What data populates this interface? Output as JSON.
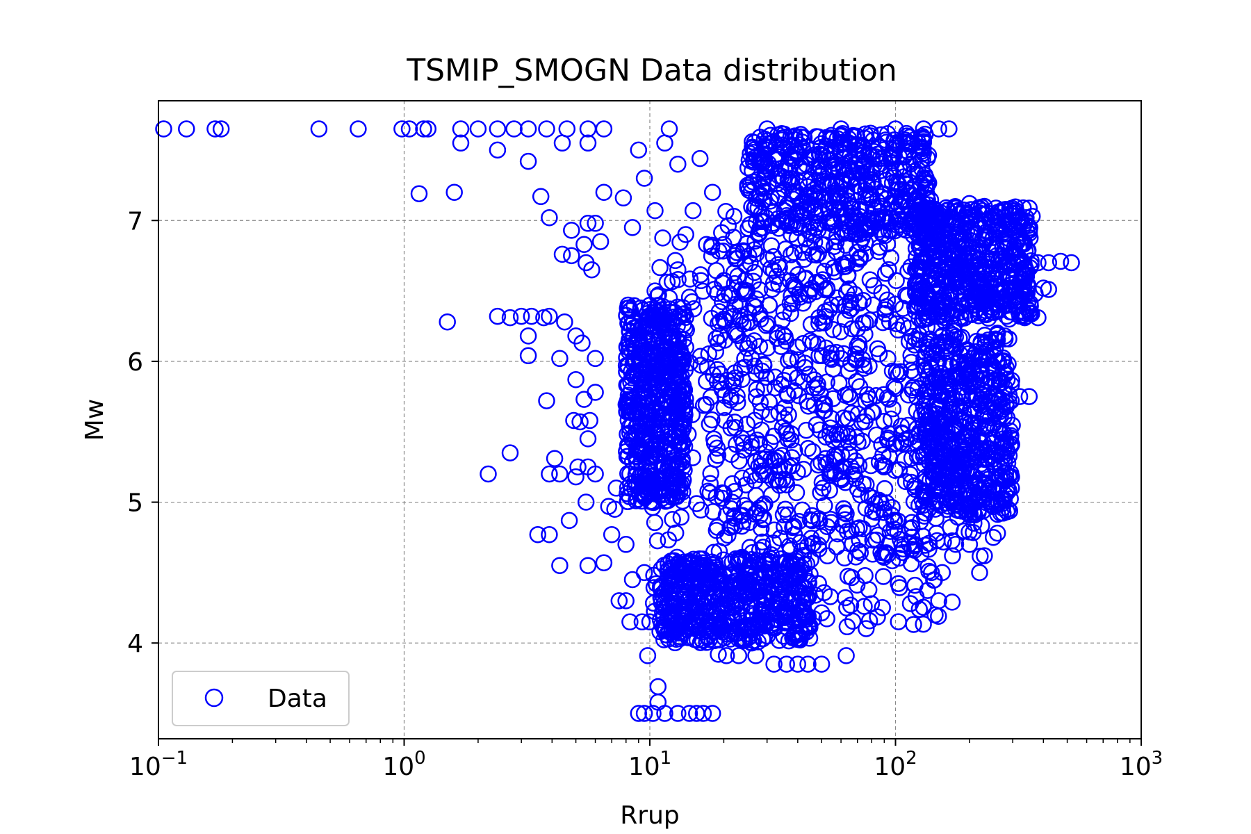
{
  "chart_data": {
    "type": "scatter",
    "title": "TSMIP_SMOGN Data distribution",
    "xlabel": "Rrup",
    "ylabel": "Mw",
    "xscale": "log",
    "xlim": [
      0.1,
      1000
    ],
    "ylim": [
      3.32,
      7.85
    ],
    "x_ticks": [
      {
        "value": 0.1,
        "base": "10",
        "exp": "−1"
      },
      {
        "value": 1,
        "base": "10",
        "exp": "0"
      },
      {
        "value": 10,
        "base": "10",
        "exp": "1"
      },
      {
        "value": 100,
        "base": "10",
        "exp": "2"
      },
      {
        "value": 1000,
        "base": "10",
        "exp": "3"
      }
    ],
    "y_ticks": [
      {
        "value": 4,
        "label": "4"
      },
      {
        "value": 5,
        "label": "5"
      },
      {
        "value": 6,
        "label": "6"
      },
      {
        "value": 7,
        "label": "7"
      }
    ],
    "grid": true,
    "legend_position": "lower-left",
    "series": [
      {
        "name": "Data",
        "marker": "open-circle",
        "color": "#0000ff",
        "points": [
          [
            0.105,
            7.65
          ],
          [
            0.13,
            7.65
          ],
          [
            0.17,
            7.65
          ],
          [
            0.18,
            7.65
          ],
          [
            0.45,
            7.65
          ],
          [
            0.65,
            7.65
          ],
          [
            0.98,
            7.65
          ],
          [
            1.05,
            7.65
          ],
          [
            1.2,
            7.65
          ],
          [
            1.25,
            7.65
          ],
          [
            1.7,
            7.65
          ],
          [
            2.0,
            7.65
          ],
          [
            2.4,
            7.65
          ],
          [
            2.8,
            7.65
          ],
          [
            3.2,
            7.65
          ],
          [
            3.8,
            7.65
          ],
          [
            4.6,
            7.65
          ],
          [
            5.6,
            7.65
          ],
          [
            6.5,
            7.65
          ],
          [
            12,
            7.65
          ],
          [
            30,
            7.65
          ],
          [
            60,
            7.65
          ],
          [
            100,
            7.65
          ],
          [
            130,
            7.65
          ],
          [
            150,
            7.65
          ],
          [
            165,
            7.65
          ],
          [
            1.7,
            7.55
          ],
          [
            2.4,
            7.5
          ],
          [
            3.2,
            7.42
          ],
          [
            4.4,
            7.55
          ],
          [
            5.6,
            7.55
          ],
          [
            9,
            7.5
          ],
          [
            1.15,
            7.19
          ],
          [
            1.6,
            7.2
          ],
          [
            3.6,
            7.17
          ],
          [
            6.5,
            7.2
          ],
          [
            7.8,
            7.16
          ],
          [
            9.5,
            7.3
          ],
          [
            10.5,
            7.07
          ],
          [
            3.9,
            7.02
          ],
          [
            5.6,
            6.98
          ],
          [
            6.0,
            6.98
          ],
          [
            8.5,
            6.95
          ],
          [
            4.8,
            6.93
          ],
          [
            5.4,
            6.83
          ],
          [
            6.3,
            6.85
          ],
          [
            4.4,
            6.76
          ],
          [
            4.8,
            6.75
          ],
          [
            5.5,
            6.7
          ],
          [
            5.8,
            6.65
          ],
          [
            10.5,
            6.5
          ],
          [
            12.0,
            6.45
          ],
          [
            14,
            6.1
          ],
          [
            20,
            6.3
          ],
          [
            1.5,
            6.28
          ],
          [
            2.4,
            6.32
          ],
          [
            2.7,
            6.31
          ],
          [
            3.0,
            6.32
          ],
          [
            3.3,
            6.32
          ],
          [
            3.7,
            6.31
          ],
          [
            3.9,
            6.32
          ],
          [
            4.5,
            6.28
          ],
          [
            3.2,
            6.18
          ],
          [
            3.2,
            6.04
          ],
          [
            4.3,
            6.02
          ],
          [
            5.0,
            6.18
          ],
          [
            5.3,
            6.13
          ],
          [
            6.0,
            6.02
          ],
          [
            5.0,
            5.87
          ],
          [
            3.8,
            5.72
          ],
          [
            5.4,
            5.73
          ],
          [
            6.0,
            5.78
          ],
          [
            4.9,
            5.58
          ],
          [
            5.2,
            5.57
          ],
          [
            5.7,
            5.58
          ],
          [
            5.6,
            5.45
          ],
          [
            2.7,
            5.35
          ],
          [
            4.1,
            5.31
          ],
          [
            5.1,
            5.25
          ],
          [
            5.6,
            5.25
          ],
          [
            2.2,
            5.2
          ],
          [
            3.9,
            5.2
          ],
          [
            4.3,
            5.2
          ],
          [
            5.0,
            5.18
          ],
          [
            6.0,
            5.2
          ],
          [
            7.3,
            5.1
          ],
          [
            5.5,
            5.0
          ],
          [
            6.8,
            4.97
          ],
          [
            7.2,
            4.95
          ],
          [
            4.7,
            4.87
          ],
          [
            3.5,
            4.77
          ],
          [
            3.9,
            4.77
          ],
          [
            7.0,
            4.77
          ],
          [
            8.0,
            4.7
          ],
          [
            4.3,
            4.55
          ],
          [
            5.6,
            4.55
          ],
          [
            6.5,
            4.57
          ],
          [
            8.5,
            4.45
          ],
          [
            9.5,
            4.5
          ],
          [
            7.5,
            4.3
          ],
          [
            8.0,
            4.3
          ],
          [
            8.3,
            4.15
          ],
          [
            9.3,
            4.15
          ],
          [
            10,
            4.15
          ],
          [
            11,
            4.08
          ],
          [
            9.8,
            3.91
          ],
          [
            10.8,
            3.69
          ],
          [
            10.8,
            3.58
          ],
          [
            9.0,
            3.5
          ],
          [
            9.5,
            3.5
          ],
          [
            10.3,
            3.5
          ],
          [
            11.5,
            3.5
          ],
          [
            13,
            3.5
          ],
          [
            14.5,
            3.5
          ],
          [
            15.5,
            3.5
          ],
          [
            16.5,
            3.5
          ],
          [
            18,
            3.5
          ],
          [
            19,
            3.92
          ],
          [
            20.5,
            3.91
          ],
          [
            23,
            3.91
          ],
          [
            27,
            3.91
          ],
          [
            32,
            3.85
          ],
          [
            36,
            3.85
          ],
          [
            40,
            3.85
          ],
          [
            44,
            3.85
          ],
          [
            50,
            3.85
          ],
          [
            63,
            3.91
          ],
          [
            115,
            4.28
          ],
          [
            125,
            4.24
          ],
          [
            150,
            4.3
          ],
          [
            145,
            4.2
          ],
          [
            140,
            4.5
          ],
          [
            155,
            4.5
          ],
          [
            170,
            4.29
          ],
          [
            200,
            4.7
          ],
          [
            220,
            4.5
          ],
          [
            250,
            4.75
          ],
          [
            260,
            4.78
          ],
          [
            230,
            4.62
          ],
          [
            210,
            5.05
          ],
          [
            240,
            5.1
          ],
          [
            280,
            5.05
          ],
          [
            270,
            5.35
          ],
          [
            290,
            5.33
          ],
          [
            250,
            5.55
          ],
          [
            260,
            5.75
          ],
          [
            290,
            5.76
          ],
          [
            320,
            5.75
          ],
          [
            350,
            5.75
          ],
          [
            280,
            5.92
          ],
          [
            230,
            6.1
          ],
          [
            240,
            6.02
          ],
          [
            260,
            6.2
          ],
          [
            290,
            6.3
          ],
          [
            340,
            6.32
          ],
          [
            380,
            6.31
          ],
          [
            300,
            6.5
          ],
          [
            330,
            6.5
          ],
          [
            370,
            6.48
          ],
          [
            400,
            6.52
          ],
          [
            420,
            6.51
          ],
          [
            380,
            6.7
          ],
          [
            420,
            6.7
          ],
          [
            470,
            6.71
          ],
          [
            520,
            6.7
          ],
          [
            250,
            6.88
          ],
          [
            270,
            6.93
          ],
          [
            300,
            6.95
          ],
          [
            320,
            7.0
          ],
          [
            340,
            7.02
          ],
          [
            360,
            7.03
          ],
          [
            230,
            7.1
          ],
          [
            200,
            7.12
          ],
          [
            130,
            7.3
          ],
          [
            120,
            7.35
          ],
          [
            17,
            6.83
          ],
          [
            20,
            6.83
          ],
          [
            13,
            6.65
          ],
          [
            14,
            6.9
          ],
          [
            15,
            7.07
          ],
          [
            18,
            7.2
          ],
          [
            22,
            7.03
          ],
          [
            25,
            7.25
          ],
          [
            13,
            7.4
          ],
          [
            16,
            7.44
          ],
          [
            11.5,
            7.55
          ],
          [
            28,
            7.45
          ],
          [
            35,
            7.3
          ]
        ],
        "dense_regions": [
          {
            "x": [
              10,
              160
            ],
            "y": [
              4.1,
              6.9
            ]
          },
          {
            "x": [
              18,
              230
            ],
            "y": [
              4.6,
              7.1
            ]
          },
          {
            "x": [
              25,
              140
            ],
            "y": [
              6.9,
              7.62
            ]
          },
          {
            "x": [
              11,
              45
            ],
            "y": [
              4.0,
              4.6
            ]
          },
          {
            "x": [
              8,
              14
            ],
            "y": [
              5.0,
              6.4
            ]
          },
          {
            "x": [
              120,
              360
            ],
            "y": [
              6.3,
              7.1
            ]
          },
          {
            "x": [
              130,
              300
            ],
            "y": [
              4.9,
              6.2
            ]
          }
        ]
      }
    ],
    "legend": [
      {
        "label": "Data"
      }
    ]
  }
}
